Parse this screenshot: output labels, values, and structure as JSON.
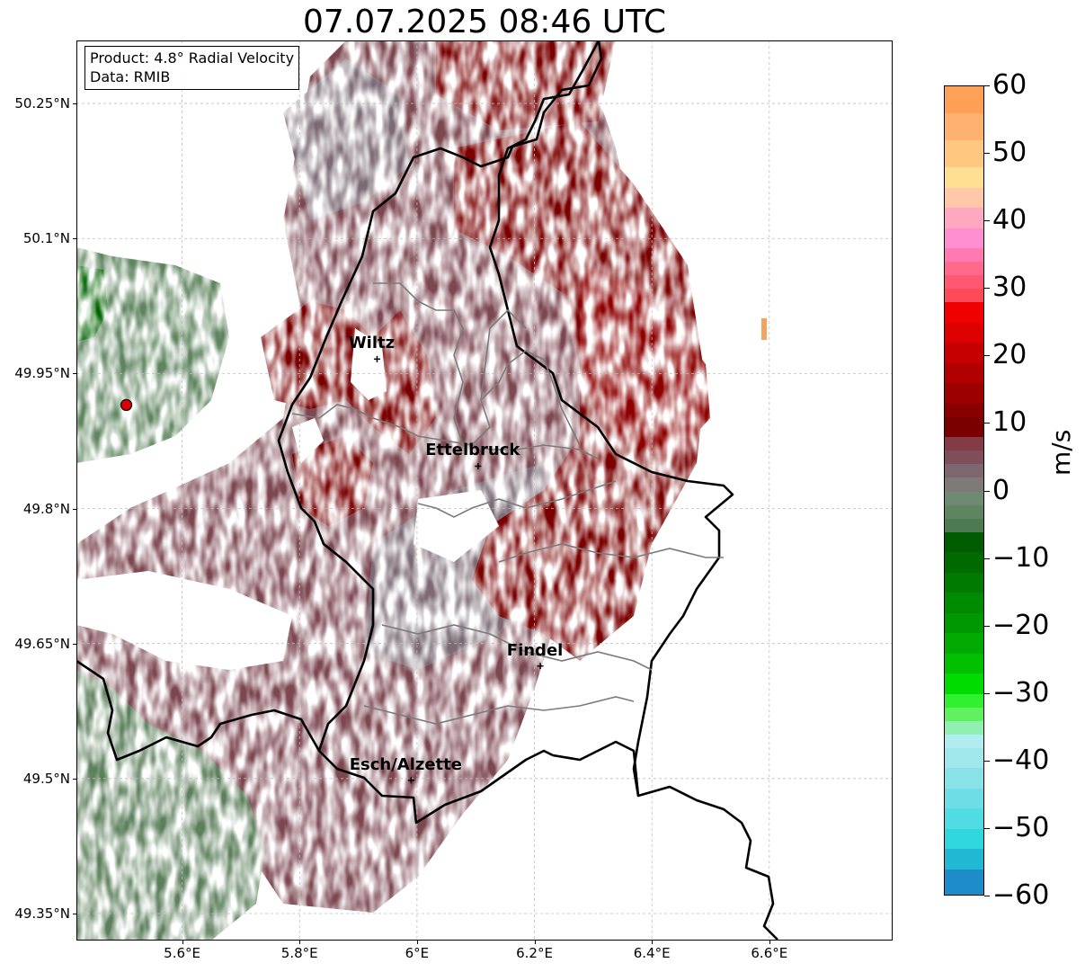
{
  "title": "07.07.2025 08:46 UTC",
  "info_box": {
    "product": "Product: 4.8° Radial Velocity",
    "source": "Data: RMIB"
  },
  "map": {
    "lon_range": [
      5.42,
      6.81
    ],
    "lat_range": [
      49.32,
      50.32
    ],
    "radar_site": {
      "lon": 5.505,
      "lat": 49.915,
      "color": "#e00000"
    },
    "lat_ticks": [
      {
        "value": 50.25,
        "label": "50.25°N"
      },
      {
        "value": 50.1,
        "label": "50.1°N"
      },
      {
        "value": 49.95,
        "label": "49.95°N"
      },
      {
        "value": 49.8,
        "label": "49.8°N"
      },
      {
        "value": 49.65,
        "label": "49.65°N"
      },
      {
        "value": 49.5,
        "label": "49.5°N"
      },
      {
        "value": 49.35,
        "label": "49.35°N"
      }
    ],
    "lon_ticks": [
      {
        "value": 5.6,
        "label": "5.6°E"
      },
      {
        "value": 5.8,
        "label": "5.8°E"
      },
      {
        "value": 6.0,
        "label": "6°E"
      },
      {
        "value": 6.2,
        "label": "6.2°E"
      },
      {
        "value": 6.4,
        "label": "6.4°E"
      },
      {
        "value": 6.6,
        "label": "6.6°E"
      }
    ],
    "cities": [
      {
        "name": "Wiltz",
        "lon": 5.932,
        "lat": 49.966
      },
      {
        "name": "Ettelbruck",
        "lon": 6.104,
        "lat": 49.847
      },
      {
        "name": "Findel",
        "lon": 6.21,
        "lat": 49.625
      },
      {
        "name": "Esch/Alzette",
        "lon": 5.99,
        "lat": 49.498
      }
    ],
    "colors": {
      "receding_strong": "#7a0000",
      "receding_weak": "#7c3c48",
      "near_zero": "#7c6670",
      "approaching_weak": "#5c7f5c",
      "approaching_strong": "#006400",
      "far_receding": "#f4a460"
    }
  },
  "colorbar": {
    "unit": "m/s",
    "min": -60,
    "max": 60,
    "ticks": [
      {
        "value": 60,
        "label": "60"
      },
      {
        "value": 50,
        "label": "50"
      },
      {
        "value": 40,
        "label": "40"
      },
      {
        "value": 30,
        "label": "30"
      },
      {
        "value": 20,
        "label": "20"
      },
      {
        "value": 10,
        "label": "10"
      },
      {
        "value": 0,
        "label": "0"
      },
      {
        "value": -10,
        "label": "−10"
      },
      {
        "value": -20,
        "label": "−20"
      },
      {
        "value": -30,
        "label": "−30"
      },
      {
        "value": -40,
        "label": "−40"
      },
      {
        "value": -50,
        "label": "−50"
      },
      {
        "value": -60,
        "label": "−60"
      }
    ],
    "bands": [
      {
        "from": 56,
        "to": 60,
        "color": "#ffa057"
      },
      {
        "from": 52,
        "to": 56,
        "color": "#ffb270"
      },
      {
        "from": 48,
        "to": 52,
        "color": "#ffc77f"
      },
      {
        "from": 45,
        "to": 48,
        "color": "#ffe092"
      },
      {
        "from": 42,
        "to": 45,
        "color": "#ffc9a9"
      },
      {
        "from": 39,
        "to": 42,
        "color": "#ffa9c0"
      },
      {
        "from": 36,
        "to": 39,
        "color": "#ff8fd0"
      },
      {
        "from": 34,
        "to": 36,
        "color": "#ff7ab0"
      },
      {
        "from": 32,
        "to": 34,
        "color": "#ff6a8c"
      },
      {
        "from": 30,
        "to": 32,
        "color": "#ff5870"
      },
      {
        "from": 28,
        "to": 30,
        "color": "#ff4a5a"
      },
      {
        "from": 25,
        "to": 28,
        "color": "#f00000"
      },
      {
        "from": 22,
        "to": 25,
        "color": "#dc0000"
      },
      {
        "from": 19,
        "to": 22,
        "color": "#c60000"
      },
      {
        "from": 16,
        "to": 19,
        "color": "#b00000"
      },
      {
        "from": 13,
        "to": 16,
        "color": "#9c0000"
      },
      {
        "from": 11,
        "to": 13,
        "color": "#8a0000"
      },
      {
        "from": 8,
        "to": 11,
        "color": "#7a0000"
      },
      {
        "from": 6,
        "to": 8,
        "color": "#833c46"
      },
      {
        "from": 4,
        "to": 6,
        "color": "#7e4f5a"
      },
      {
        "from": 2,
        "to": 4,
        "color": "#7d6670"
      },
      {
        "from": 0,
        "to": 2,
        "color": "#7f7a78"
      },
      {
        "from": -2,
        "to": 0,
        "color": "#6f8a72"
      },
      {
        "from": -4,
        "to": -2,
        "color": "#5f8560"
      },
      {
        "from": -6,
        "to": -4,
        "color": "#4e7a52"
      },
      {
        "from": -9,
        "to": -6,
        "color": "#005c00"
      },
      {
        "from": -12,
        "to": -9,
        "color": "#006a00"
      },
      {
        "from": -15,
        "to": -12,
        "color": "#007a00"
      },
      {
        "from": -18,
        "to": -15,
        "color": "#008a00"
      },
      {
        "from": -21,
        "to": -18,
        "color": "#009800"
      },
      {
        "from": -24,
        "to": -21,
        "color": "#00aa00"
      },
      {
        "from": -27,
        "to": -24,
        "color": "#00c000"
      },
      {
        "from": -30,
        "to": -27,
        "color": "#00dc00"
      },
      {
        "from": -32,
        "to": -30,
        "color": "#30f030"
      },
      {
        "from": -34,
        "to": -32,
        "color": "#60f060"
      },
      {
        "from": -36,
        "to": -34,
        "color": "#90f0b0"
      },
      {
        "from": -38,
        "to": -36,
        "color": "#b0ecf0"
      },
      {
        "from": -41,
        "to": -38,
        "color": "#a0e8ec"
      },
      {
        "from": -44,
        "to": -41,
        "color": "#88e2e8"
      },
      {
        "from": -47,
        "to": -44,
        "color": "#6edee6"
      },
      {
        "from": -50,
        "to": -47,
        "color": "#50dce2"
      },
      {
        "from": -53,
        "to": -50,
        "color": "#30d8de"
      },
      {
        "from": -56,
        "to": -53,
        "color": "#20b8d2"
      },
      {
        "from": -60,
        "to": -56,
        "color": "#1e8cc8"
      }
    ]
  }
}
